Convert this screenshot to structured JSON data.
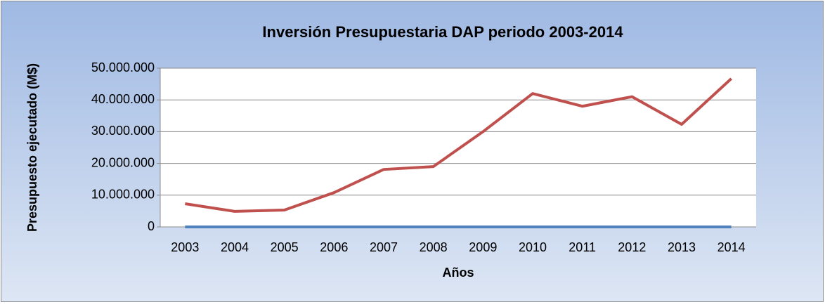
{
  "chart_data": {
    "type": "line",
    "title": "Inversión Presupuestaria DAP periodo 2003-2014",
    "x_label": "Años",
    "y_label": "Presupuesto ejecutado (M$)",
    "categories": [
      "2003",
      "2004",
      "2005",
      "2006",
      "2007",
      "2008",
      "2009",
      "2010",
      "2011",
      "2012",
      "2013",
      "2014"
    ],
    "series": [
      {
        "color": "#4f81bd",
        "values": [
          0,
          0,
          0,
          0,
          0,
          0,
          0,
          0,
          0,
          0,
          0,
          0
        ]
      },
      {
        "color": "#c0504d",
        "values": [
          7300000,
          4900000,
          5300000,
          10800000,
          18100000,
          19000000,
          30000000,
          42000000,
          38000000,
          41000000,
          32300000,
          46700000
        ]
      }
    ],
    "ylim": [
      0,
      50000000
    ],
    "yticks": [
      0,
      {
        "value": 10000000,
        "label": "10.000.000"
      },
      {
        "value": 20000000,
        "label": "20.000.000"
      },
      {
        "value": 30000000,
        "label": "30.000.000"
      },
      {
        "value": 40000000,
        "label": "40.000.000"
      },
      {
        "value": 50000000,
        "label": "50.000.000"
      }
    ],
    "grid": true
  }
}
